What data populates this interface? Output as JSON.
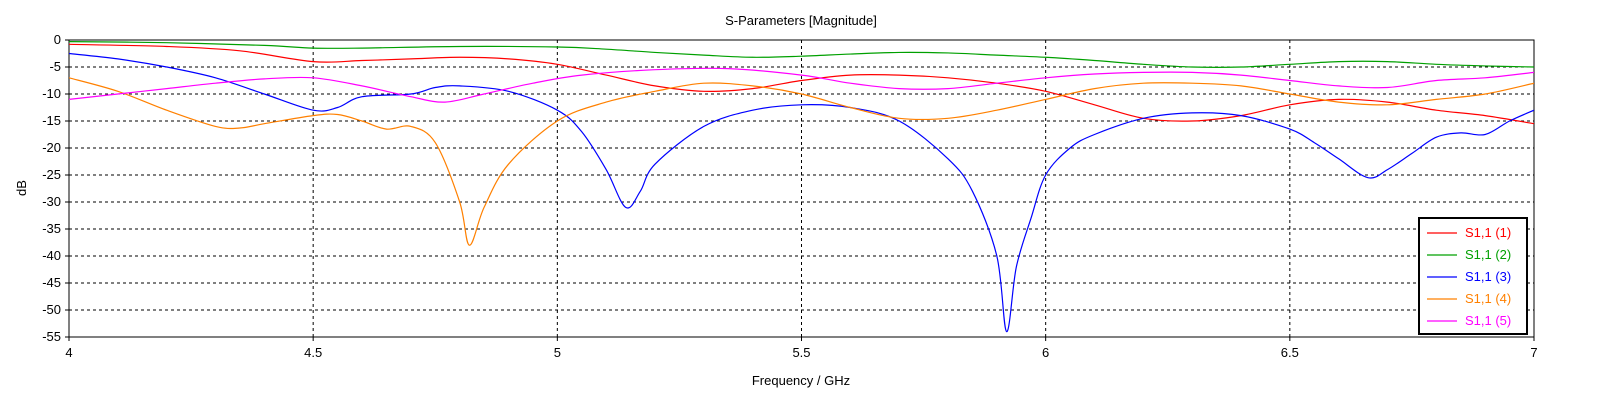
{
  "chart_data": {
    "type": "line",
    "title": "S-Parameters [Magnitude]",
    "xlabel": "Frequency / GHz",
    "ylabel": "dB",
    "xlim": [
      4,
      7
    ],
    "ylim": [
      -55,
      0
    ],
    "x_ticks": [
      "4",
      "4.5",
      "5",
      "5.5",
      "6",
      "6.5",
      "7"
    ],
    "y_ticks": [
      "0",
      "-5",
      "-10",
      "-15",
      "-20",
      "-25",
      "-30",
      "-35",
      "-40",
      "-45",
      "-50",
      "-55"
    ],
    "grid": "dashed",
    "legend_position": "bottom-right",
    "series": [
      {
        "name": "S1,1 (1)",
        "color": "#ff0000",
        "points": [
          [
            4,
            -0.8
          ],
          [
            4.2,
            -1.2
          ],
          [
            4.35,
            -2.0
          ],
          [
            4.5,
            -4.0
          ],
          [
            4.6,
            -3.8
          ],
          [
            4.7,
            -3.5
          ],
          [
            4.8,
            -3.2
          ],
          [
            4.9,
            -3.5
          ],
          [
            5.0,
            -4.5
          ],
          [
            5.1,
            -6.5
          ],
          [
            5.2,
            -8.5
          ],
          [
            5.3,
            -9.5
          ],
          [
            5.4,
            -9.0
          ],
          [
            5.5,
            -7.5
          ],
          [
            5.6,
            -6.5
          ],
          [
            5.7,
            -6.5
          ],
          [
            5.8,
            -7.0
          ],
          [
            5.9,
            -8.0
          ],
          [
            6.0,
            -9.5
          ],
          [
            6.1,
            -12.0
          ],
          [
            6.2,
            -14.5
          ],
          [
            6.3,
            -15.0
          ],
          [
            6.4,
            -14.0
          ],
          [
            6.5,
            -12.0
          ],
          [
            6.6,
            -11.0
          ],
          [
            6.7,
            -11.5
          ],
          [
            6.8,
            -13.0
          ],
          [
            6.9,
            -14.0
          ],
          [
            7.0,
            -15.5
          ]
        ]
      },
      {
        "name": "S1,1 (2)",
        "color": "#00a000",
        "points": [
          [
            4,
            -0.3
          ],
          [
            4.2,
            -0.5
          ],
          [
            4.4,
            -1.0
          ],
          [
            4.5,
            -1.5
          ],
          [
            4.6,
            -1.5
          ],
          [
            4.8,
            -1.2
          ],
          [
            5.0,
            -1.3
          ],
          [
            5.1,
            -1.7
          ],
          [
            5.2,
            -2.3
          ],
          [
            5.3,
            -2.8
          ],
          [
            5.4,
            -3.2
          ],
          [
            5.5,
            -3.0
          ],
          [
            5.6,
            -2.6
          ],
          [
            5.7,
            -2.3
          ],
          [
            5.8,
            -2.4
          ],
          [
            5.9,
            -2.8
          ],
          [
            6.0,
            -3.2
          ],
          [
            6.1,
            -3.8
          ],
          [
            6.2,
            -4.5
          ],
          [
            6.3,
            -5.0
          ],
          [
            6.4,
            -5.0
          ],
          [
            6.5,
            -4.5
          ],
          [
            6.6,
            -4.0
          ],
          [
            6.7,
            -4.0
          ],
          [
            6.8,
            -4.5
          ],
          [
            6.9,
            -4.8
          ],
          [
            7.0,
            -5.0
          ]
        ]
      },
      {
        "name": "S1,1 (3)",
        "color": "#0000ff",
        "points": [
          [
            4,
            -2.5
          ],
          [
            4.1,
            -3.5
          ],
          [
            4.2,
            -5.0
          ],
          [
            4.3,
            -7.0
          ],
          [
            4.4,
            -10.0
          ],
          [
            4.5,
            -13.0
          ],
          [
            4.55,
            -12.5
          ],
          [
            4.6,
            -10.5
          ],
          [
            4.7,
            -10.0
          ],
          [
            4.75,
            -8.8
          ],
          [
            4.8,
            -8.5
          ],
          [
            4.9,
            -9.5
          ],
          [
            5.0,
            -13.0
          ],
          [
            5.05,
            -17.0
          ],
          [
            5.1,
            -24.0
          ],
          [
            5.14,
            -31.0
          ],
          [
            5.17,
            -28.0
          ],
          [
            5.2,
            -23.0
          ],
          [
            5.3,
            -16.0
          ],
          [
            5.4,
            -13.0
          ],
          [
            5.5,
            -12.0
          ],
          [
            5.6,
            -12.5
          ],
          [
            5.7,
            -15.0
          ],
          [
            5.8,
            -22.0
          ],
          [
            5.85,
            -28.0
          ],
          [
            5.9,
            -40.0
          ],
          [
            5.92,
            -54.0
          ],
          [
            5.94,
            -42.0
          ],
          [
            5.97,
            -33.0
          ],
          [
            6.0,
            -25.0
          ],
          [
            6.05,
            -20.0
          ],
          [
            6.1,
            -17.5
          ],
          [
            6.2,
            -14.5
          ],
          [
            6.3,
            -13.5
          ],
          [
            6.4,
            -14.0
          ],
          [
            6.5,
            -16.5
          ],
          [
            6.55,
            -19.0
          ],
          [
            6.6,
            -22.0
          ],
          [
            6.66,
            -25.5
          ],
          [
            6.7,
            -24.0
          ],
          [
            6.75,
            -21.0
          ],
          [
            6.8,
            -18.0
          ],
          [
            6.85,
            -17.2
          ],
          [
            6.9,
            -17.5
          ],
          [
            6.95,
            -15.0
          ],
          [
            7.0,
            -13.0
          ]
        ]
      },
      {
        "name": "S1,1 (4)",
        "color": "#ff8000",
        "points": [
          [
            4,
            -7.0
          ],
          [
            4.1,
            -9.5
          ],
          [
            4.2,
            -13.0
          ],
          [
            4.3,
            -16.0
          ],
          [
            4.35,
            -16.3
          ],
          [
            4.4,
            -15.5
          ],
          [
            4.5,
            -14.0
          ],
          [
            4.55,
            -13.8
          ],
          [
            4.6,
            -15.0
          ],
          [
            4.65,
            -16.5
          ],
          [
            4.7,
            -16.0
          ],
          [
            4.75,
            -19.0
          ],
          [
            4.8,
            -30.0
          ],
          [
            4.82,
            -38.0
          ],
          [
            4.85,
            -31.0
          ],
          [
            4.9,
            -23.0
          ],
          [
            5.0,
            -15.0
          ],
          [
            5.1,
            -11.5
          ],
          [
            5.2,
            -9.5
          ],
          [
            5.3,
            -8.0
          ],
          [
            5.4,
            -8.5
          ],
          [
            5.5,
            -10.0
          ],
          [
            5.6,
            -12.5
          ],
          [
            5.7,
            -14.5
          ],
          [
            5.8,
            -14.5
          ],
          [
            5.9,
            -13.0
          ],
          [
            6.0,
            -11.0
          ],
          [
            6.1,
            -9.0
          ],
          [
            6.2,
            -8.0
          ],
          [
            6.3,
            -8.0
          ],
          [
            6.4,
            -8.5
          ],
          [
            6.5,
            -10.0
          ],
          [
            6.6,
            -11.5
          ],
          [
            6.7,
            -12.0
          ],
          [
            6.8,
            -11.0
          ],
          [
            6.9,
            -10.0
          ],
          [
            7.0,
            -8.0
          ]
        ]
      },
      {
        "name": "S1,1 (5)",
        "color": "#ff00ff",
        "points": [
          [
            4,
            -11.0
          ],
          [
            4.1,
            -10.0
          ],
          [
            4.2,
            -9.0
          ],
          [
            4.3,
            -8.0
          ],
          [
            4.4,
            -7.2
          ],
          [
            4.5,
            -7.0
          ],
          [
            4.6,
            -8.5
          ],
          [
            4.7,
            -10.5
          ],
          [
            4.77,
            -11.5
          ],
          [
            4.85,
            -10.0
          ],
          [
            4.95,
            -8.0
          ],
          [
            5.05,
            -6.5
          ],
          [
            5.2,
            -5.5
          ],
          [
            5.35,
            -5.3
          ],
          [
            5.5,
            -6.5
          ],
          [
            5.6,
            -8.0
          ],
          [
            5.7,
            -9.0
          ],
          [
            5.8,
            -9.0
          ],
          [
            5.9,
            -8.0
          ],
          [
            6.0,
            -7.0
          ],
          [
            6.1,
            -6.3
          ],
          [
            6.2,
            -6.0
          ],
          [
            6.3,
            -6.0
          ],
          [
            6.4,
            -6.5
          ],
          [
            6.5,
            -7.5
          ],
          [
            6.6,
            -8.5
          ],
          [
            6.7,
            -8.8
          ],
          [
            6.8,
            -7.5
          ],
          [
            6.9,
            -7.0
          ],
          [
            7.0,
            -6.0
          ]
        ]
      }
    ]
  }
}
